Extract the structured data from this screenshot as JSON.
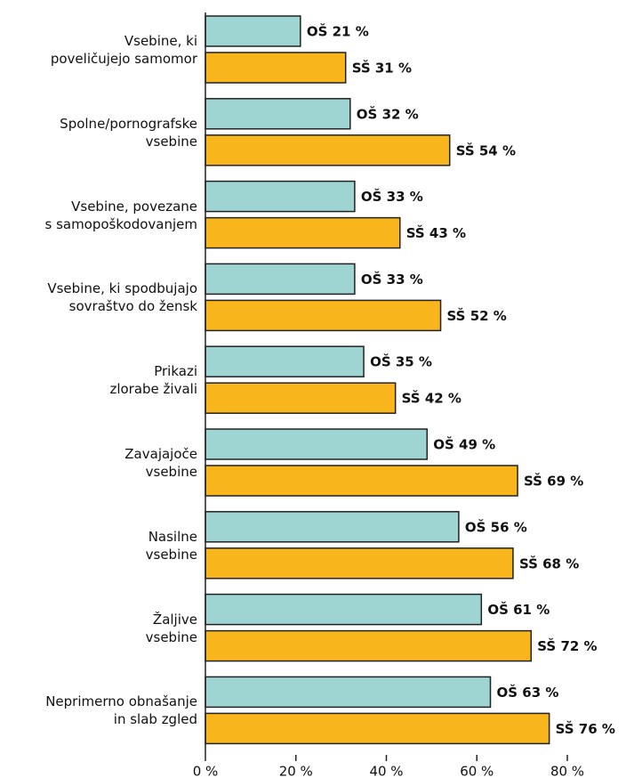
{
  "chart_data": {
    "type": "bar",
    "orientation": "horizontal",
    "categories": [
      "Vsebine, ki\npoveličujejo samomor",
      "Spolne/pornografske\nvsebine",
      "Vsebine, povezane\ns samopoškodovanjem",
      "Vsebine, ki spodbujajo\nsovraštvo do žensk",
      "Prikazi\nzlorabe živali",
      "Zavajajoče\nvsebine",
      "Nasilne\nvsebine",
      "Žaljive\nvsebine",
      "Neprimerno obnašanje\nin slab zgled"
    ],
    "series": [
      {
        "name": "OŠ",
        "color": "#9ed5d3",
        "values": [
          21,
          32,
          33,
          33,
          35,
          49,
          56,
          61,
          63
        ],
        "value_labels": [
          "OŠ 21 %",
          "OŠ 32 %",
          "OŠ 33 %",
          "OŠ 33 %",
          "OŠ 35 %",
          "OŠ 49 %",
          "OŠ 56 %",
          "OŠ 61 %",
          "OŠ 63 %"
        ]
      },
      {
        "name": "SŠ",
        "color": "#f8b51c",
        "values": [
          31,
          54,
          43,
          52,
          42,
          69,
          68,
          72,
          76
        ],
        "value_labels": [
          "SŠ 31 %",
          "SŠ 54 %",
          "SŠ 43 %",
          "SŠ 52 %",
          "SŠ 42 %",
          "SŠ 69 %",
          "SŠ 68 %",
          "SŠ 72 %",
          "SŠ 76 %"
        ]
      }
    ],
    "xlim": [
      0,
      80
    ],
    "xticks": [
      {
        "value": 0,
        "label": "0 %"
      },
      {
        "value": 20,
        "label": "20 %"
      },
      {
        "value": 40,
        "label": "40 %"
      },
      {
        "value": 60,
        "label": "60 %"
      },
      {
        "value": 80,
        "label": "80 %"
      }
    ]
  }
}
